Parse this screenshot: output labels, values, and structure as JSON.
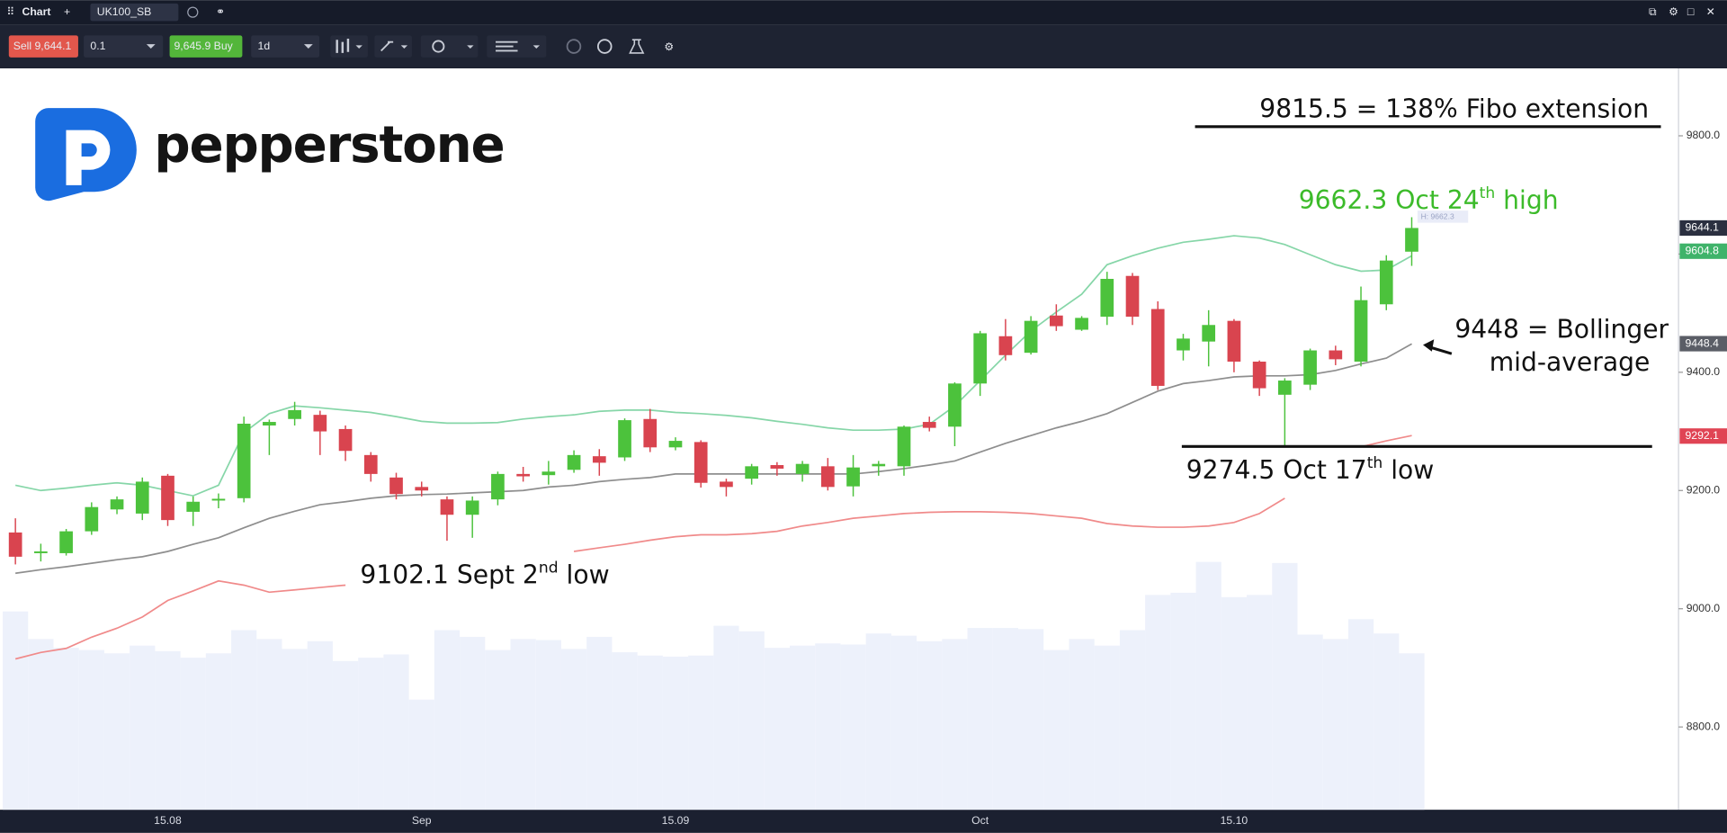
{
  "toolbar": {
    "window_title": "Chart",
    "tab": "UK100_SB",
    "sell": "Sell 9,644.1",
    "quantity": "0.1",
    "buy": "9,645.9 Buy",
    "interval": "1d"
  },
  "logo": "pepperstone",
  "chart_data": {
    "type": "candlestick",
    "categories": [
      null,
      null,
      null,
      null,
      null,
      null,
      "15.08",
      null,
      null,
      null,
      null,
      null,
      null,
      null,
      null,
      null,
      "Sep",
      null,
      null,
      null,
      null,
      null,
      null,
      null,
      null,
      null,
      "15.09",
      null,
      null,
      null,
      null,
      null,
      null,
      null,
      null,
      null,
      null,
      null,
      "Oct",
      null,
      null,
      null,
      null,
      null,
      null,
      null,
      null,
      null,
      "15.10",
      null,
      null,
      null,
      null,
      null,
      null,
      null
    ],
    "open": [
      9129,
      9094,
      9094,
      9131,
      9168,
      9161,
      9225,
      9164,
      9183,
      9187,
      9310,
      9321,
      9328,
      9304,
      9260,
      9222,
      9206,
      9185,
      9159,
      9185,
      9228,
      9226,
      9235,
      9258,
      9256,
      9321,
      9273,
      9282,
      9215,
      9220,
      9243,
      9228,
      9241,
      9207,
      9241,
      9241,
      9316,
      9308,
      9381,
      9461,
      9433,
      9496,
      9472,
      9494,
      9563,
      9507,
      9437,
      9452,
      9487,
      9418,
      9362,
      9379,
      9437,
      9418,
      9515,
      9604
    ],
    "high": [
      9153,
      9110,
      9135,
      9180,
      9190,
      9222,
      9228,
      9190,
      9195,
      9325,
      9320,
      9350,
      9335,
      9310,
      9265,
      9230,
      9215,
      9190,
      9190,
      9232,
      9240,
      9250,
      9268,
      9270,
      9322,
      9338,
      9290,
      9285,
      9220,
      9245,
      9248,
      9250,
      9255,
      9260,
      9250,
      9310,
      9325,
      9383,
      9470,
      9490,
      9495,
      9515,
      9495,
      9570,
      9568,
      9520,
      9465,
      9505,
      9490,
      9420,
      9390,
      9440,
      9445,
      9545,
      9598,
      9662.3
    ],
    "low": [
      9075,
      9080,
      9090,
      9125,
      9160,
      9150,
      9140,
      9140,
      9170,
      9180,
      9260,
      9310,
      9260,
      9250,
      9215,
      9185,
      9190,
      9115,
      9120,
      9175,
      9215,
      9210,
      9230,
      9225,
      9250,
      9265,
      9268,
      9205,
      9190,
      9210,
      9225,
      9215,
      9200,
      9190,
      9225,
      9225,
      9300,
      9275,
      9360,
      9420,
      9430,
      9470,
      9470,
      9480,
      9480,
      9370,
      9420,
      9410,
      9400,
      9360,
      9274.5,
      9370,
      9412,
      9410,
      9505,
      9580
    ],
    "close": [
      9088,
      9097,
      9131,
      9172,
      9185,
      9215,
      9150,
      9181,
      9186,
      9313,
      9316,
      9336,
      9300,
      9267,
      9228,
      9194,
      9200,
      9159,
      9183,
      9228,
      9224,
      9232,
      9260,
      9247,
      9319,
      9273,
      9284,
      9213,
      9206,
      9241,
      9237,
      9245,
      9206,
      9239,
      9245,
      9308,
      9306,
      9381,
      9466,
      9429,
      9487,
      9478,
      9492,
      9558,
      9494,
      9377,
      9457,
      9480,
      9418,
      9373,
      9386,
      9437,
      9422,
      9522,
      9589,
      9644.1
    ],
    "up_color": "#4cc23c",
    "down_color": "#d9444f",
    "overlays": [
      {
        "color": "#86d6a8",
        "values": [
          9209,
          9200,
          9204,
          9209,
          9213,
          9209,
          9200,
          9191,
          9209,
          9298,
          9330,
          9343,
          9340,
          9336,
          9332,
          9325,
          9317,
          9314,
          9314,
          9315,
          9321,
          9325,
          9328,
          9334,
          9336,
          9336,
          9332,
          9330,
          9327,
          9323,
          9317,
          9312,
          9306,
          9302,
          9302,
          9304,
          9312,
          9343,
          9386,
          9429,
          9470,
          9502,
          9532,
          9582,
          9597,
          9610,
          9620,
          9625,
          9631,
          9627,
          9616,
          9599,
          9582,
          9571,
          9573,
          9597
        ]
      },
      {
        "color": "#8e8e8e",
        "values": [
          9060,
          9066,
          9071,
          9077,
          9083,
          9088,
          9097,
          9109,
          9120,
          9137,
          9153,
          9165,
          9176,
          9181,
          9187,
          9191,
          9193,
          9194,
          9196,
          9198,
          9200,
          9206,
          9209,
          9215,
          9219,
          9222,
          9228,
          9228,
          9228,
          9228,
          9228,
          9228,
          9228,
          9228,
          9232,
          9237,
          9243,
          9250,
          9265,
          9280,
          9293,
          9306,
          9317,
          9330,
          9349,
          9368,
          9381,
          9386,
          9392,
          9394,
          9394,
          9396,
          9403,
          9414,
          9424,
          9448
        ]
      },
      {
        "color": "#f08a8a",
        "values": [
          8915,
          8926,
          8933,
          8952,
          8967,
          8986,
          9014,
          9030,
          9047,
          9040,
          9028,
          9032,
          9036,
          9040,
          null,
          null,
          null,
          null,
          null,
          null,
          null,
          null,
          9097,
          9103,
          9109,
          9116,
          9122,
          9125,
          9125,
          9127,
          9131,
          9140,
          9146,
          9153,
          9157,
          9161,
          9163,
          9164,
          9164,
          9163,
          9161,
          9157,
          9153,
          9144,
          9140,
          9138,
          9138,
          9140,
          9146,
          9161,
          9187,
          null,
          null,
          9274,
          9284,
          9293
        ]
      }
    ],
    "volume": [
      180,
      155,
      147,
      145,
      142,
      149,
      144,
      138,
      142,
      163,
      155,
      146,
      153,
      135,
      138,
      141,
      100,
      163,
      157,
      145,
      155,
      154,
      146,
      157,
      143,
      140,
      139,
      140,
      167,
      162,
      147,
      149,
      151,
      150,
      160,
      158,
      153,
      155,
      165,
      165,
      164,
      145,
      155,
      149,
      163,
      195,
      197,
      225,
      193,
      195,
      224,
      159,
      155,
      173,
      160,
      142
    ],
    "volume_color": "#edf1fb",
    "vlim": [
      0,
      673
    ],
    "ylim": [
      8660,
      9914
    ],
    "yticks": [
      {
        "value": 9800,
        "label": "9800.0"
      },
      {
        "value": 9600,
        "label": "9600.0"
      },
      {
        "value": 9400,
        "label": "9400.0"
      },
      {
        "value": 9200,
        "label": "9200.0"
      },
      {
        "value": 9000,
        "label": "9000.0"
      },
      {
        "value": 8800,
        "label": "8800.0"
      }
    ],
    "price_tags": [
      {
        "value": 9644.1,
        "label": "9644.1",
        "color": "#2b3040"
      },
      {
        "value": 9604.8,
        "label": "9604.8",
        "color": "#3fb36a"
      },
      {
        "value": 9448.4,
        "label": "9448.4",
        "color": "#5a5d66"
      },
      {
        "value": 9292.1,
        "label": "9292.1",
        "color": "#e04454"
      }
    ],
    "high_marker": {
      "label": "H: 9662.3",
      "value": 9662.3
    },
    "annotations": {
      "fibo": {
        "label": "9815.5 = 138% Fibo extension",
        "level": 9815.5
      },
      "high": {
        "parts": [
          "9662.3 Oct 24",
          "th",
          " high"
        ]
      },
      "bollinger": {
        "lines": [
          "9448 = Bollinger",
          "mid-average"
        ]
      },
      "low": {
        "parts": [
          "9274.5 Oct 17",
          "th",
          " low"
        ],
        "level": 9274.5
      },
      "sept": {
        "parts": [
          "9102.1 Sept 2",
          "nd",
          " low"
        ]
      }
    }
  }
}
